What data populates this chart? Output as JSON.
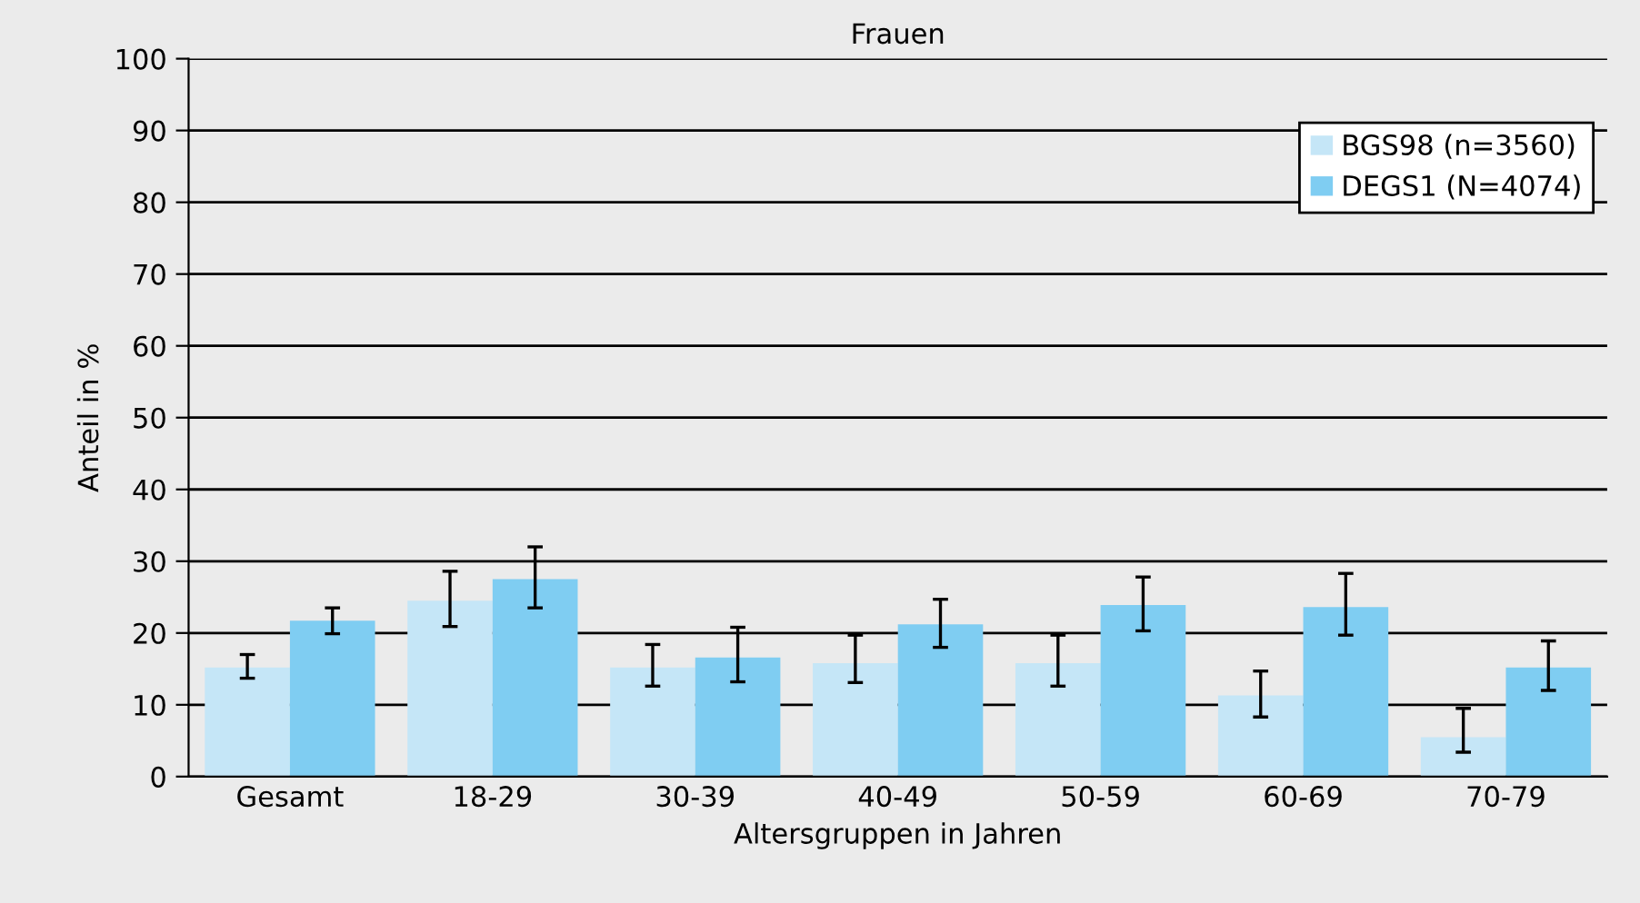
{
  "chart_data": {
    "type": "bar",
    "title": "Frauen",
    "xlabel": "Altersgruppen in Jahren",
    "ylabel": "Anteil in %",
    "categories": [
      "Gesamt",
      "18-29",
      "30-39",
      "40-49",
      "50-59",
      "60-69",
      "70-79"
    ],
    "series": [
      {
        "name": "BGS98 (n=3560)",
        "color": "#c5e6f7",
        "values": [
          15.2,
          24.5,
          15.2,
          15.8,
          15.8,
          11.3,
          5.5
        ],
        "errors": [
          [
            13.7,
            17.0
          ],
          [
            20.9,
            28.6
          ],
          [
            12.6,
            18.4
          ],
          [
            13.1,
            19.7
          ],
          [
            12.6,
            19.7
          ],
          [
            8.3,
            14.7
          ],
          [
            3.4,
            9.5
          ]
        ]
      },
      {
        "name": "DEGS1 (N=4074)",
        "color": "#7fcdf2",
        "values": [
          21.7,
          27.5,
          16.6,
          21.2,
          23.9,
          23.6,
          15.2
        ],
        "errors": [
          [
            19.9,
            23.5
          ],
          [
            23.5,
            32.0
          ],
          [
            13.2,
            20.8
          ],
          [
            18.0,
            24.7
          ],
          [
            20.3,
            27.8
          ],
          [
            19.7,
            28.3
          ],
          [
            12.0,
            18.9
          ]
        ]
      }
    ],
    "ylim": [
      0,
      100
    ],
    "yticks": [
      0,
      10,
      20,
      30,
      40,
      50,
      60,
      70,
      80,
      90,
      100
    ],
    "grid": "y",
    "legend": "top right"
  }
}
